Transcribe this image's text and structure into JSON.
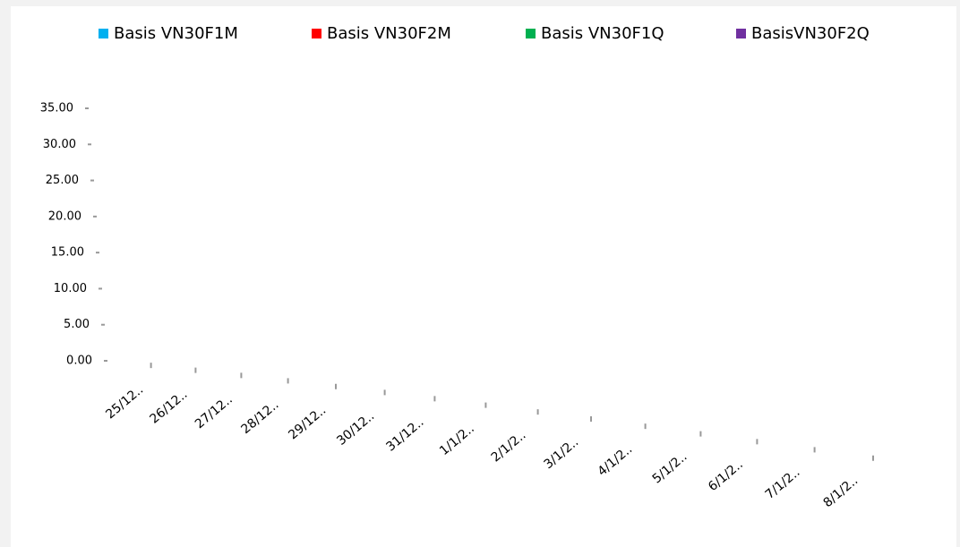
{
  "chart_data": {
    "type": "line",
    "categories": [
      "25/12..",
      "26/12..",
      "27/12..",
      "28/12..",
      "29/12..",
      "30/12..",
      "31/12..",
      "1/1/2..",
      "2/1/2..",
      "3/1/2..",
      "4/1/2..",
      "5/1/2..",
      "6/1/2..",
      "7/1/2..",
      "8/1/2.."
    ],
    "series": [
      {
        "name": "Basis VN30F1M",
        "color": "#00b0f0",
        "values": [
          null,
          null,
          null,
          null,
          null,
          null,
          null,
          null,
          null,
          null,
          null,
          null,
          null,
          null,
          null
        ]
      },
      {
        "name": "Basis VN30F2M",
        "color": "#ff0000",
        "values": [
          null,
          null,
          null,
          null,
          null,
          null,
          null,
          null,
          null,
          null,
          null,
          null,
          null,
          null,
          null
        ]
      },
      {
        "name": "Basis VN30F1Q",
        "color": "#00b050",
        "values": [
          null,
          null,
          null,
          null,
          null,
          null,
          null,
          null,
          null,
          null,
          null,
          null,
          null,
          null,
          null
        ]
      },
      {
        "name": "BasisVN30F2Q",
        "color": "#7030a0",
        "values": [
          null,
          null,
          null,
          null,
          null,
          null,
          null,
          null,
          null,
          null,
          null,
          null,
          null,
          null,
          null
        ]
      }
    ],
    "ylim": [
      0,
      35
    ],
    "yticks": [
      {
        "value": 0,
        "label": "0.00"
      },
      {
        "value": 5,
        "label": "5.00"
      },
      {
        "value": 10,
        "label": "10.00"
      },
      {
        "value": 15,
        "label": "15.00"
      },
      {
        "value": 20,
        "label": "20.00"
      },
      {
        "value": 25,
        "label": "25.00"
      },
      {
        "value": 30,
        "label": "30.00"
      },
      {
        "value": 35,
        "label": "35.00"
      }
    ],
    "legend": "top"
  }
}
